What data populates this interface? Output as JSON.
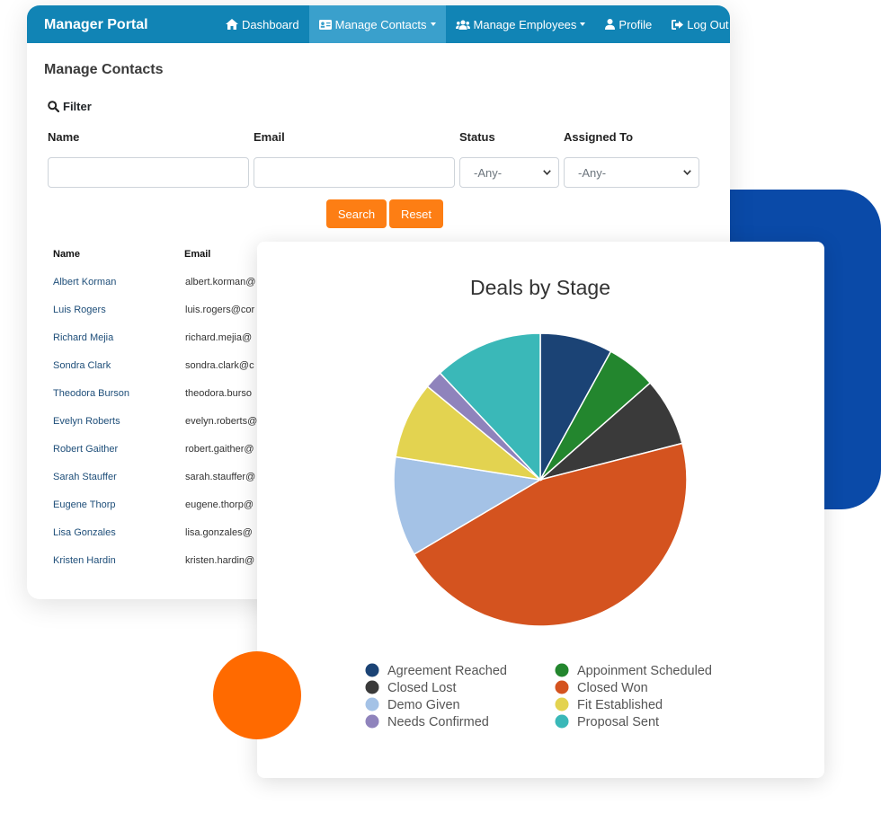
{
  "nav": {
    "brand": "Manager Portal",
    "items": [
      {
        "label": "Dashboard",
        "icon": "home-icon",
        "active": false,
        "dropdown": false
      },
      {
        "label": "Manage Contacts",
        "icon": "contact-card-icon",
        "active": true,
        "dropdown": true
      },
      {
        "label": "Manage Employees",
        "icon": "users-icon",
        "active": false,
        "dropdown": true
      },
      {
        "label": "Profile",
        "icon": "user-icon",
        "active": false,
        "dropdown": false
      },
      {
        "label": "Log Out",
        "icon": "logout-icon",
        "active": false,
        "dropdown": false
      }
    ]
  },
  "page": {
    "title": "Manage Contacts"
  },
  "filter": {
    "title": "Filter",
    "name_label": "Name",
    "email_label": "Email",
    "status_label": "Status",
    "assigned_label": "Assigned To",
    "name_value": "",
    "email_value": "",
    "status_value": "-Any-",
    "assigned_value": "-Any-",
    "search_label": "Search",
    "reset_label": "Reset"
  },
  "table": {
    "columns": [
      "Name",
      "Email"
    ],
    "rows": [
      {
        "name": "Albert Korman",
        "email": "albert.korman@"
      },
      {
        "name": "Luis Rogers",
        "email": "luis.rogers@cor"
      },
      {
        "name": "Richard Mejia",
        "email": "richard.mejia@"
      },
      {
        "name": "Sondra Clark",
        "email": "sondra.clark@c"
      },
      {
        "name": "Theodora Burson",
        "email": "theodora.burso"
      },
      {
        "name": "Evelyn Roberts",
        "email": "evelyn.roberts@"
      },
      {
        "name": "Robert Gaither",
        "email": "robert.gaither@"
      },
      {
        "name": "Sarah Stauffer",
        "email": "sarah.stauffer@"
      },
      {
        "name": "Eugene Thorp",
        "email": "eugene.thorp@"
      },
      {
        "name": "Lisa Gonzales",
        "email": "lisa.gonzales@"
      },
      {
        "name": "Kristen Hardin",
        "email": "kristen.hardin@"
      }
    ]
  },
  "colors": {
    "navbar": "#1184b5",
    "nav_active": "#3aa0cc",
    "button": "#fd7e14",
    "deco_blue": "#0a4aa8",
    "deco_orange": "#ff6a00"
  },
  "chart_data": {
    "type": "pie",
    "title": "Deals by Stage",
    "legend_position": "bottom",
    "slices": [
      {
        "label": "Agreement Reached",
        "value": 8,
        "color": "#1b4375"
      },
      {
        "label": "Appoinment Scheduled",
        "value": 5.5,
        "color": "#23862e"
      },
      {
        "label": "Closed Lost",
        "value": 7.5,
        "color": "#3a3a3a"
      },
      {
        "label": "Closed Won",
        "value": 45.5,
        "color": "#d4531f"
      },
      {
        "label": "Demo Given",
        "value": 11,
        "color": "#a4c2e6"
      },
      {
        "label": "Fit Established",
        "value": 8.5,
        "color": "#e3d350"
      },
      {
        "label": "Needs Confirmed",
        "value": 2,
        "color": "#8f83bc"
      },
      {
        "label": "Proposal Sent",
        "value": 12,
        "color": "#3ab8b8"
      }
    ]
  }
}
